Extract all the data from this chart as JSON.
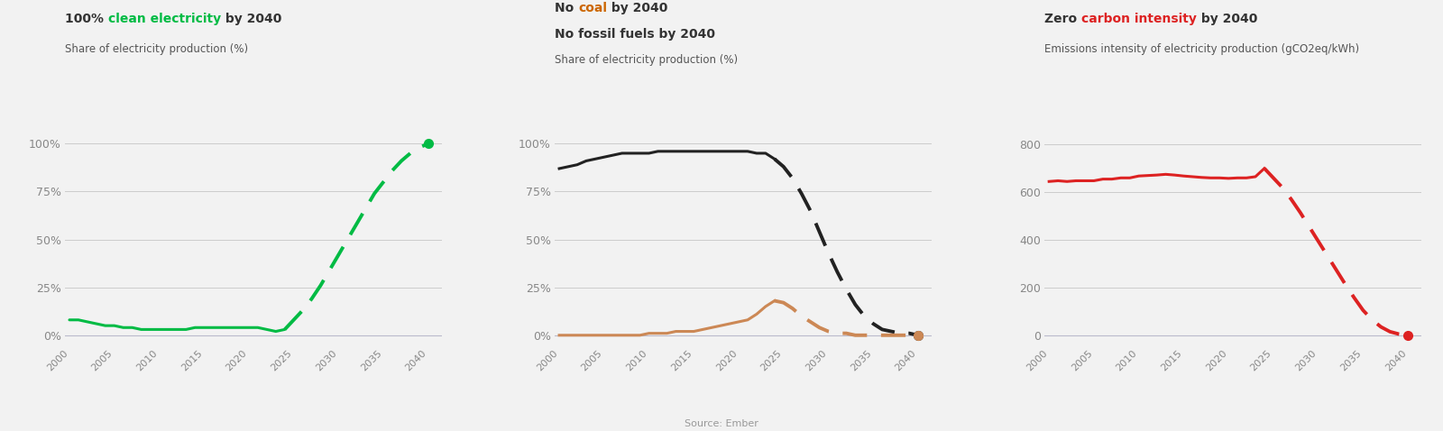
{
  "bg_color": "#f2f2f2",
  "chart_bg": "#f2f2f2",
  "chart1": {
    "subtitle": "Share of electricity production (%)",
    "solid_x": [
      2000,
      2001,
      2002,
      2003,
      2004,
      2005,
      2006,
      2007,
      2008,
      2009,
      2010,
      2011,
      2012,
      2013,
      2014,
      2015,
      2016,
      2017,
      2018,
      2019,
      2020,
      2021,
      2022,
      2023,
      2024
    ],
    "solid_y": [
      8,
      8,
      7,
      6,
      5,
      5,
      4,
      4,
      3,
      3,
      3,
      3,
      3,
      3,
      4,
      4,
      4,
      4,
      4,
      4,
      4,
      4,
      3,
      2,
      3
    ],
    "dash_x": [
      2024,
      2025,
      2026,
      2027,
      2028,
      2029,
      2030,
      2031,
      2032,
      2033,
      2034,
      2035,
      2036,
      2037,
      2038,
      2039,
      2040
    ],
    "dash_y": [
      3,
      8,
      13,
      19,
      26,
      34,
      42,
      50,
      58,
      66,
      74,
      80,
      86,
      91,
      95,
      98,
      100
    ],
    "color": "#00bb44",
    "yticks": [
      0,
      25,
      50,
      75,
      100
    ],
    "ytick_labels": [
      "0%",
      "25%",
      "50%",
      "75%",
      "100%"
    ],
    "ylim": [
      -5,
      112
    ],
    "xlim": [
      1999.5,
      2041.5
    ]
  },
  "chart2": {
    "subtitle": "Share of electricity production (%)",
    "fossil_solid_x": [
      2000,
      2001,
      2002,
      2003,
      2004,
      2005,
      2006,
      2007,
      2008,
      2009,
      2010,
      2011,
      2012,
      2013,
      2014,
      2015,
      2016,
      2017,
      2018,
      2019,
      2020,
      2021,
      2022,
      2023,
      2024
    ],
    "fossil_solid_y": [
      87,
      88,
      89,
      91,
      92,
      93,
      94,
      95,
      95,
      95,
      95,
      96,
      96,
      96,
      96,
      96,
      96,
      96,
      96,
      96,
      96,
      96,
      95,
      95,
      92
    ],
    "fossil_dash_x": [
      2024,
      2025,
      2026,
      2027,
      2028,
      2029,
      2030,
      2031,
      2032,
      2033,
      2034,
      2035,
      2036,
      2037,
      2038,
      2039,
      2040
    ],
    "fossil_dash_y": [
      92,
      88,
      82,
      74,
      65,
      54,
      43,
      33,
      24,
      16,
      10,
      6,
      3,
      2,
      1,
      1,
      0
    ],
    "fossil_color": "#222222",
    "coal_solid_x": [
      2000,
      2001,
      2002,
      2003,
      2004,
      2005,
      2006,
      2007,
      2008,
      2009,
      2010,
      2011,
      2012,
      2013,
      2014,
      2015,
      2016,
      2017,
      2018,
      2019,
      2020,
      2021,
      2022,
      2023,
      2024
    ],
    "coal_solid_y": [
      0,
      0,
      0,
      0,
      0,
      0,
      0,
      0,
      0,
      0,
      1,
      1,
      1,
      2,
      2,
      2,
      3,
      4,
      5,
      6,
      7,
      8,
      11,
      15,
      18
    ],
    "coal_dash_x": [
      2024,
      2025,
      2026,
      2027,
      2028,
      2029,
      2030,
      2031,
      2032,
      2033,
      2034,
      2035,
      2036,
      2037,
      2038,
      2039,
      2040
    ],
    "coal_dash_y": [
      18,
      17,
      14,
      10,
      7,
      4,
      2,
      1,
      1,
      0,
      0,
      0,
      0,
      0,
      0,
      0,
      0
    ],
    "coal_color": "#cc8855",
    "yticks": [
      0,
      25,
      50,
      75,
      100
    ],
    "ytick_labels": [
      "0%",
      "25%",
      "50%",
      "75%",
      "100%"
    ],
    "ylim": [
      -5,
      112
    ],
    "xlim": [
      1999.5,
      2041.5
    ]
  },
  "chart3": {
    "subtitle": "Emissions intensity of electricity production (gCO2eq/kWh)",
    "solid_x": [
      2000,
      2001,
      2002,
      2003,
      2004,
      2005,
      2006,
      2007,
      2008,
      2009,
      2010,
      2011,
      2012,
      2013,
      2014,
      2015,
      2016,
      2017,
      2018,
      2019,
      2020,
      2021,
      2022,
      2023,
      2024
    ],
    "solid_y": [
      645,
      648,
      645,
      648,
      648,
      648,
      655,
      655,
      660,
      660,
      668,
      670,
      672,
      675,
      672,
      668,
      665,
      662,
      660,
      660,
      658,
      660,
      660,
      665,
      700
    ],
    "dash_x": [
      2024,
      2025,
      2026,
      2027,
      2028,
      2029,
      2030,
      2031,
      2032,
      2033,
      2034,
      2035,
      2036,
      2037,
      2038,
      2039,
      2040
    ],
    "dash_y": [
      700,
      660,
      620,
      570,
      515,
      455,
      395,
      335,
      275,
      215,
      158,
      105,
      65,
      35,
      15,
      5,
      0
    ],
    "color": "#dd2222",
    "yticks": [
      0,
      200,
      400,
      600,
      800
    ],
    "ytick_labels": [
      "0",
      "200",
      "400",
      "600",
      "800"
    ],
    "ylim": [
      -40,
      900
    ],
    "xlim": [
      1999.5,
      2041.5
    ]
  },
  "source_text": "Source: Ember"
}
